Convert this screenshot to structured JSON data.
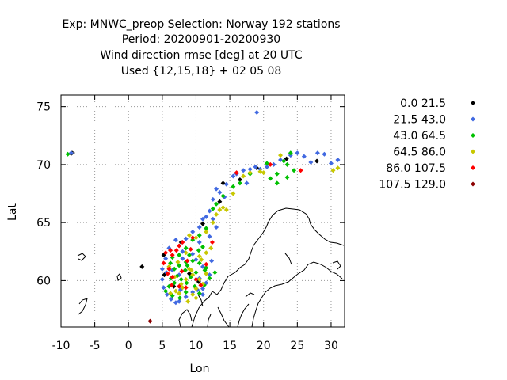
{
  "chart_data": {
    "type": "scatter",
    "title_lines": [
      "Exp: MNWC_preop   Selection: Norway    192 stations",
      "Period: 20200901-20200930",
      "Wind direction rmse [deg] at  20 UTC",
      "Used {12,15,18} + 02 05 08"
    ],
    "xlabel": "Lon",
    "ylabel": "Lat",
    "xlim": [
      -10,
      32
    ],
    "ylim": [
      56,
      76
    ],
    "xticks": [
      "-10",
      "-5",
      "0",
      "5",
      "10",
      "15",
      "20",
      "25",
      "30"
    ],
    "yticks": [
      "60",
      "65",
      "70",
      "75"
    ],
    "grid": true,
    "legend_position": "right",
    "series": [
      {
        "name": "0.0 21.5",
        "color": "#000000",
        "points": [
          [
            2,
            61.2
          ],
          [
            5.2,
            62.2
          ],
          [
            5.3,
            60.5
          ],
          [
            6.7,
            59.5
          ],
          [
            7.8,
            63.3
          ],
          [
            11,
            64.9
          ],
          [
            13.5,
            66.8
          ],
          [
            14,
            68.4
          ],
          [
            16.5,
            68.7
          ],
          [
            19,
            69.7
          ],
          [
            23.4,
            70.5
          ],
          [
            27.9,
            70.3
          ],
          [
            10.4,
            59.9
          ],
          [
            9,
            60.6
          ]
        ]
      },
      {
        "name": "21.5 43.0",
        "color": "#4169e1",
        "points": [
          [
            19,
            74.5
          ],
          [
            -8.5,
            71
          ],
          [
            15.5,
            69
          ],
          [
            16,
            69.2
          ],
          [
            17,
            69.5
          ],
          [
            18,
            69.6
          ],
          [
            18.8,
            69.8
          ],
          [
            19.5,
            69.6
          ],
          [
            20.5,
            69.8
          ],
          [
            21.5,
            70
          ],
          [
            22.5,
            70.4
          ],
          [
            24,
            70.8
          ],
          [
            25,
            71
          ],
          [
            26,
            70.7
          ],
          [
            27,
            70.2
          ],
          [
            28,
            71
          ],
          [
            29,
            70.9
          ],
          [
            30,
            70.1
          ],
          [
            31,
            70.4
          ],
          [
            14.5,
            68.3
          ],
          [
            13.5,
            67.6
          ],
          [
            12.5,
            67
          ],
          [
            13,
            67.9
          ],
          [
            12,
            66
          ],
          [
            11.5,
            65.5
          ],
          [
            11,
            65.3
          ],
          [
            10.5,
            64.6
          ],
          [
            9.5,
            64.2
          ],
          [
            8.5,
            63.6
          ],
          [
            7,
            63.5
          ],
          [
            6,
            62.8
          ],
          [
            5.5,
            61.9
          ],
          [
            5,
            61
          ],
          [
            5,
            60.1
          ],
          [
            5.2,
            59.4
          ],
          [
            5.7,
            58.8
          ],
          [
            6.3,
            58.4
          ],
          [
            7,
            58.1
          ],
          [
            7.5,
            58.2
          ],
          [
            8.5,
            58.6
          ],
          [
            9.5,
            59
          ],
          [
            10.2,
            59.2
          ],
          [
            11,
            59.3
          ],
          [
            11.5,
            59.8
          ],
          [
            12,
            60.5
          ],
          [
            12.3,
            61.7
          ],
          [
            11,
            61.2
          ],
          [
            10,
            61.8
          ],
          [
            9.5,
            62.3
          ],
          [
            8,
            62.5
          ],
          [
            10.5,
            63.3
          ],
          [
            12,
            63.8
          ],
          [
            13,
            64.6
          ],
          [
            12.5,
            65.3
          ],
          [
            6.5,
            60.9
          ],
          [
            7.5,
            60.5
          ],
          [
            8,
            61.9
          ],
          [
            10.5,
            60.2
          ],
          [
            11,
            58.8
          ],
          [
            7.7,
            59.2
          ],
          [
            5.6,
            60.7
          ],
          [
            14.2,
            67.2
          ],
          [
            17.5,
            68.4
          ]
        ]
      },
      {
        "name": "43.0 64.5",
        "color": "#00c000",
        "points": [
          [
            -9,
            70.9
          ],
          [
            24,
            71
          ],
          [
            23.5,
            70
          ],
          [
            23,
            70.3
          ],
          [
            22,
            69.2
          ],
          [
            21,
            68.8
          ],
          [
            20.5,
            70.1
          ],
          [
            18,
            69.2
          ],
          [
            16.5,
            68.4
          ],
          [
            15.5,
            68.1
          ],
          [
            14,
            67.3
          ],
          [
            13,
            66.6
          ],
          [
            12.5,
            66.2
          ],
          [
            11.5,
            64.5
          ],
          [
            10.5,
            63.9
          ],
          [
            9.5,
            63.5
          ],
          [
            8.5,
            62.8
          ],
          [
            7.5,
            62.2
          ],
          [
            6.5,
            62
          ],
          [
            6.2,
            61.5
          ],
          [
            6.8,
            61
          ],
          [
            7.5,
            61.3
          ],
          [
            8.5,
            61.6
          ],
          [
            9.5,
            61.7
          ],
          [
            10.5,
            61.5
          ],
          [
            11.5,
            61.1
          ],
          [
            12,
            60.2
          ],
          [
            11.2,
            59.6
          ],
          [
            10.5,
            58.9
          ],
          [
            9.8,
            59.5
          ],
          [
            8.6,
            59.8
          ],
          [
            7.8,
            60.1
          ],
          [
            6.8,
            59.8
          ],
          [
            6,
            59.5
          ],
          [
            5.5,
            59.1
          ],
          [
            6.5,
            58.7
          ],
          [
            7.6,
            58.5
          ],
          [
            8.5,
            59
          ],
          [
            9.2,
            60.3
          ],
          [
            10,
            60.7
          ],
          [
            8.4,
            60.9
          ],
          [
            7.2,
            60.4
          ],
          [
            6.3,
            60.2
          ],
          [
            10.4,
            62.6
          ],
          [
            11,
            62.9
          ],
          [
            8.7,
            61.3
          ],
          [
            9,
            62.2
          ],
          [
            24.5,
            69.5
          ],
          [
            23.5,
            68.9
          ],
          [
            22,
            68.4
          ],
          [
            12.8,
            60.7
          ],
          [
            11.3,
            60.9
          ]
        ]
      },
      {
        "name": "64.5 86.0",
        "color": "#c8c800",
        "points": [
          [
            31,
            69.7
          ],
          [
            30.3,
            69.5
          ],
          [
            22.5,
            70.8
          ],
          [
            20,
            69.3
          ],
          [
            19.5,
            69.4
          ],
          [
            18,
            69.3
          ],
          [
            17,
            69
          ],
          [
            15.5,
            67.5
          ],
          [
            14.5,
            66.1
          ],
          [
            14,
            66.3
          ],
          [
            13.5,
            66.1
          ],
          [
            13,
            65.7
          ],
          [
            12.5,
            65
          ],
          [
            11.5,
            64.2
          ],
          [
            10,
            63.7
          ],
          [
            9,
            63.9
          ],
          [
            8.5,
            62.4
          ],
          [
            9,
            61
          ],
          [
            9.5,
            60.5
          ],
          [
            10.5,
            60.1
          ],
          [
            11,
            59.7
          ],
          [
            8,
            59.4
          ],
          [
            7,
            59.1
          ],
          [
            6.2,
            58.9
          ],
          [
            7.5,
            58.9
          ],
          [
            8.8,
            58.2
          ],
          [
            10,
            58.5
          ],
          [
            11.5,
            60.6
          ],
          [
            10.8,
            61.8
          ],
          [
            9.3,
            60.9
          ],
          [
            7.3,
            61.6
          ],
          [
            10.5,
            62.1
          ],
          [
            9.5,
            58.8
          ],
          [
            8.5,
            60.1
          ],
          [
            7.8,
            59.7
          ],
          [
            6.8,
            60.3
          ],
          [
            10,
            59.3
          ],
          [
            11.5,
            62.4
          ],
          [
            12.2,
            62.8
          ],
          [
            6,
            61.2
          ]
        ]
      },
      {
        "name": "86.0 107.5",
        "color": "#ff0000",
        "points": [
          [
            25.5,
            69.5
          ],
          [
            21,
            70
          ],
          [
            16,
            69.3
          ],
          [
            9.5,
            63.7
          ],
          [
            8,
            63.3
          ],
          [
            7.5,
            63
          ],
          [
            6.5,
            62.2
          ],
          [
            6.2,
            62.6
          ],
          [
            5.5,
            62.4
          ],
          [
            5.2,
            61.5
          ],
          [
            6,
            61
          ],
          [
            6.5,
            60.3
          ],
          [
            7.5,
            59.5
          ],
          [
            8.5,
            59.4
          ],
          [
            10,
            60.1
          ],
          [
            11.5,
            61.4
          ],
          [
            8.7,
            61.7
          ],
          [
            5.8,
            60.6
          ],
          [
            6.4,
            59.6
          ],
          [
            7.1,
            62.6
          ],
          [
            9.2,
            62.7
          ],
          [
            12.4,
            63.3
          ],
          [
            7.9,
            60.8
          ],
          [
            10.7,
            59.6
          ]
        ]
      },
      {
        "name": "107.5 129.0",
        "color": "#8b0000",
        "points": [
          [
            3.2,
            56.5
          ]
        ]
      }
    ]
  }
}
